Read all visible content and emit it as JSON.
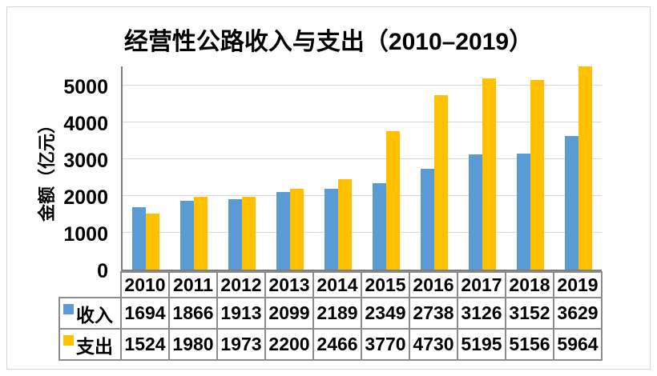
{
  "title": "经营性公路收入与支出（2010–2019）",
  "chart_data": {
    "type": "bar",
    "title": "经营性公路收入与支出（2010–2019）",
    "categories": [
      "2010",
      "2011",
      "2012",
      "2013",
      "2014",
      "2015",
      "2016",
      "2017",
      "2018",
      "2019"
    ],
    "series": [
      {
        "name": "收入",
        "color": "#5B9BD5",
        "values": [
          1694,
          1866,
          1913,
          2099,
          2189,
          2349,
          2738,
          3126,
          3152,
          3629
        ]
      },
      {
        "name": "支出",
        "color": "#FFC000",
        "values": [
          1524,
          1980,
          1973,
          2200,
          2466,
          3770,
          4730,
          5195,
          5156,
          5964
        ]
      }
    ],
    "xlabel": "",
    "ylabel": "金额（亿元）",
    "ylim": [
      0,
      5500
    ],
    "yticks": [
      0,
      1000,
      2000,
      3000,
      4000,
      5000
    ],
    "grid": true,
    "gridline_color": "#D9D9D9",
    "axis_color": "#7F7F7F",
    "legend_position": "table-rows-left",
    "bars_clipped_at_plot_top": true
  }
}
